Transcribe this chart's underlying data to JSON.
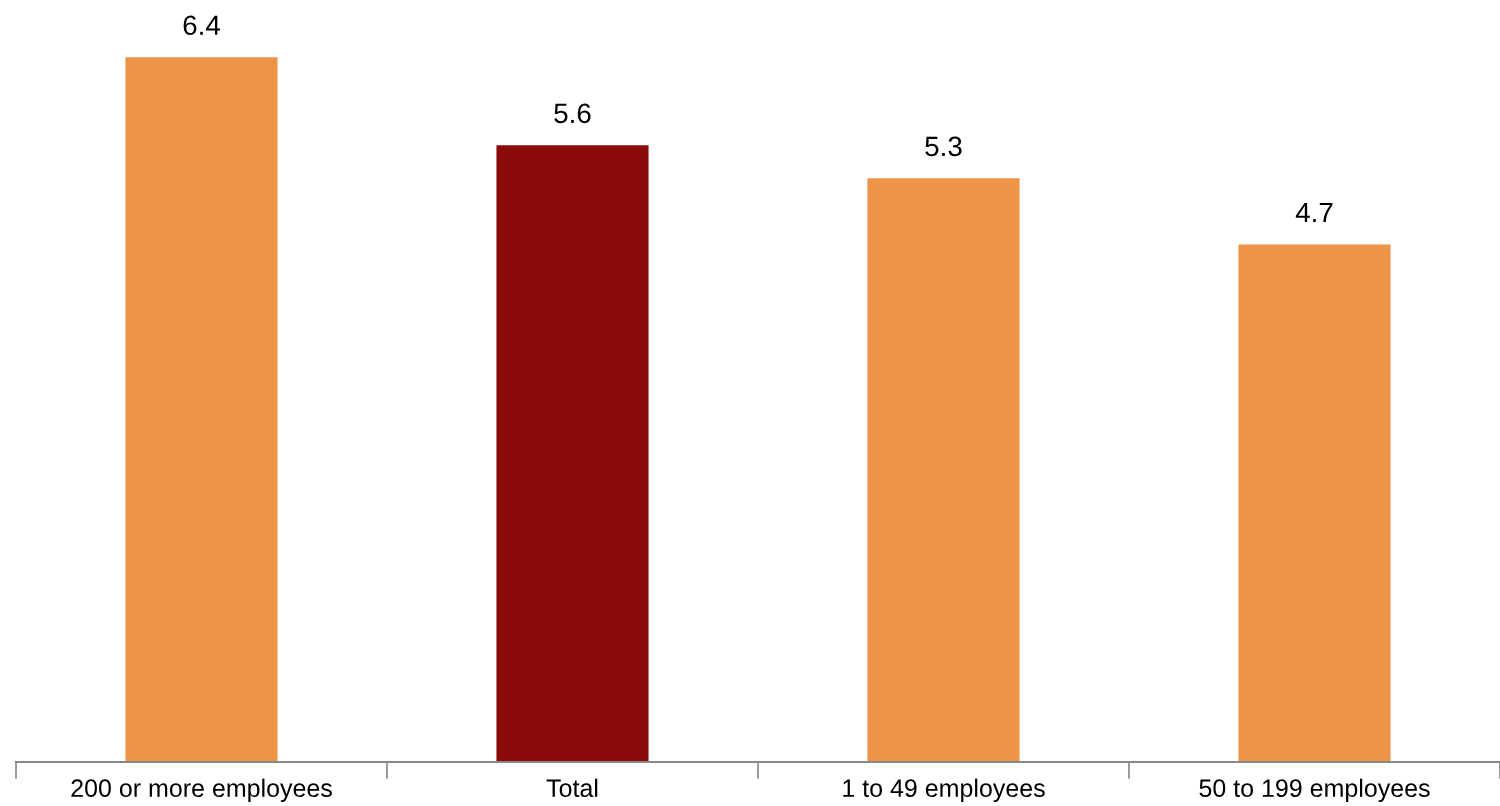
{
  "chart_data": {
    "type": "bar",
    "categories": [
      "200 or more employees",
      "Total",
      "1 to 49 employees",
      "50 to 199 employees"
    ],
    "values": [
      6.4,
      5.6,
      5.3,
      4.7
    ],
    "colors": [
      "#ed9447",
      "#8b0a0a",
      "#ed9447",
      "#ed9447"
    ],
    "data_labels": true,
    "grid": false,
    "legend": false
  }
}
